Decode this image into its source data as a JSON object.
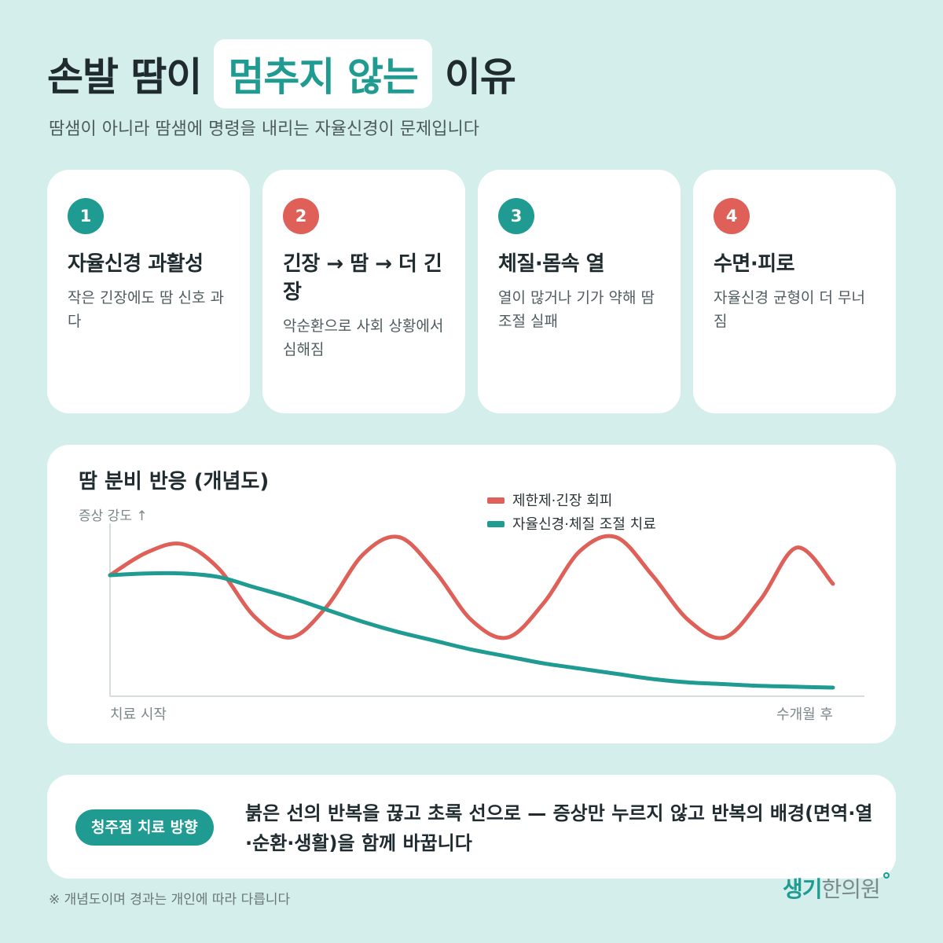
{
  "header": {
    "title_pre": "손발 땀이",
    "title_highlight": "멈추지 않는",
    "title_post": "이유",
    "subtitle": "땀샘이 아니라 땀샘에 명령을 내리는 자율신경이 문제입니다"
  },
  "cards": [
    {
      "num": "1",
      "title": "자율신경 과활성",
      "desc": "작은 긴장에도 땀 신호 과다",
      "color": "#1f9b92"
    },
    {
      "num": "2",
      "title": "긴장 → 땀 → 더 긴장",
      "desc": "악순환으로 사회 상황에서 심해짐",
      "color": "#df6058"
    },
    {
      "num": "3",
      "title": "체질·몸속 열",
      "desc": "열이 많거나 기가 약해 땀 조절 실패",
      "color": "#1f9b92"
    },
    {
      "num": "4",
      "title": "수면·피로",
      "desc": "자율신경 균형이 더 무너짐",
      "color": "#df6058"
    }
  ],
  "chart_data": {
    "type": "line",
    "title": "땀 분비 반응 (개념도)",
    "ylabel": "증상 강도 ↑",
    "xlabel_start": "치료 시작",
    "xlabel_end": "수개월 후",
    "x_range": [
      0,
      1
    ],
    "ylim": [
      0,
      1
    ],
    "grid": false,
    "legend_position": "top-right",
    "x": [
      0,
      0.05,
      0.1,
      0.15,
      0.2,
      0.25,
      0.3,
      0.35,
      0.4,
      0.45,
      0.5,
      0.55,
      0.6,
      0.65,
      0.7,
      0.75,
      0.8,
      0.85,
      0.9,
      0.95,
      1.0
    ],
    "series": [
      {
        "name": "제한제·긴장 회피",
        "color": "#df6058",
        "values": [
          0.7,
          0.83,
          0.88,
          0.74,
          0.46,
          0.34,
          0.52,
          0.82,
          0.92,
          0.72,
          0.44,
          0.34,
          0.54,
          0.84,
          0.92,
          0.7,
          0.44,
          0.34,
          0.56,
          0.86,
          0.65
        ]
      },
      {
        "name": "자율신경·체질 조절 치료",
        "color": "#1f9b92",
        "values": [
          0.7,
          0.71,
          0.71,
          0.69,
          0.63,
          0.57,
          0.5,
          0.43,
          0.37,
          0.32,
          0.27,
          0.23,
          0.19,
          0.16,
          0.13,
          0.1,
          0.08,
          0.07,
          0.06,
          0.055,
          0.05
        ]
      }
    ]
  },
  "bottom": {
    "pill": "청주점 치료 방향",
    "text": "붉은 선의 반복을 끊고 초록 선으로 — 증상만 누르지 않고 반복의 배경(면역·열·순환·생활)을 함께 바꿉니다"
  },
  "footnote": "※ 개념도이며 경과는 개인에 따라 다릅니다",
  "logo": {
    "part1": "생기",
    "part2": "한의원"
  }
}
